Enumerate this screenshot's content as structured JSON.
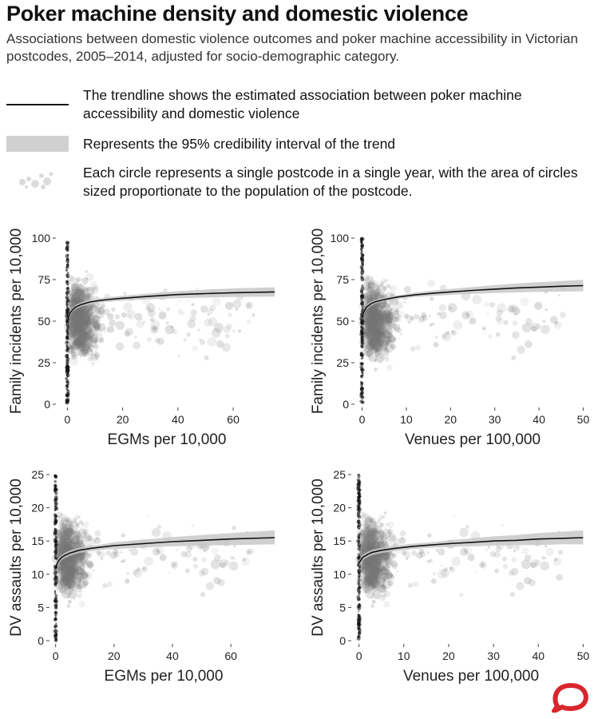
{
  "header": {
    "title": "Poker machine density and domestic violence",
    "subtitle": "Associations between domestic violence outcomes and poker machine accessibility in Victorian postcodes, 2005–2014, adjusted for socio-demographic category."
  },
  "legend": {
    "trendline": "The trendline shows the estimated association between poker machine accessibility and domestic violence",
    "interval": "Represents the 95% credibility interval of the trend",
    "circles": "Each circle represents a single postcode in a single year, with the area of circles sized proportionate to the population of the postcode."
  },
  "colors": {
    "trend": "#111111",
    "band": "#c8c8c8",
    "points": "#777777",
    "logo": "#d8262b"
  },
  "icons": {
    "logo": "speech-bubble-logo"
  },
  "chart_data": [
    {
      "type": "scatter",
      "xlabel": "EGMs per 10,000",
      "ylabel": "Family incidents per 10,000",
      "xlim": [
        -3,
        75
      ],
      "ylim": [
        0,
        100
      ],
      "xticks": [
        0,
        20,
        40,
        60
      ],
      "yticks": [
        0,
        25,
        50,
        75,
        100
      ],
      "trend": {
        "x": [
          0,
          0.5,
          1,
          2,
          3,
          5,
          8,
          12,
          16,
          20,
          30,
          40,
          50,
          60,
          75
        ],
        "y": [
          49,
          53,
          55,
          57,
          58.5,
          60,
          61.5,
          62.5,
          63.2,
          63.8,
          65,
          66,
          66.6,
          67.1,
          67.6
        ]
      },
      "band": {
        "lower": [
          47,
          51.5,
          53.5,
          55.8,
          57.2,
          58.8,
          60.2,
          61.3,
          61.8,
          62.3,
          63.2,
          63.8,
          64.2,
          64.5,
          64.8
        ],
        "upper": [
          51,
          54.5,
          56.5,
          58.3,
          59.8,
          61.3,
          62.8,
          63.8,
          64.6,
          65.3,
          66.8,
          68,
          69,
          69.7,
          70.4
        ]
      }
    },
    {
      "type": "scatter",
      "xlabel": "Venues per 100,000",
      "ylabel": "Family incidents per 10,000",
      "xlim": [
        -1,
        51
      ],
      "ylim": [
        0,
        100
      ],
      "xticks": [
        0,
        10,
        20,
        30,
        40,
        50
      ],
      "yticks": [
        0,
        25,
        50,
        75,
        100
      ],
      "trend": {
        "x": [
          0,
          0.3,
          0.7,
          1,
          2,
          3,
          5,
          8,
          12,
          16,
          20,
          25,
          30,
          35,
          40,
          45,
          50
        ],
        "y": [
          52,
          55,
          57,
          58.5,
          60.5,
          61.7,
          63,
          64.5,
          65.8,
          66.8,
          67.6,
          68.5,
          69.3,
          70,
          70.5,
          71,
          71.4
        ]
      },
      "band": {
        "lower": [
          50,
          53.5,
          55.8,
          57.2,
          59.3,
          60.6,
          62,
          63.4,
          64.5,
          65.2,
          65.8,
          66.4,
          66.9,
          67.3,
          67.6,
          67.8,
          68
        ],
        "upper": [
          54,
          56.5,
          58.2,
          59.8,
          61.7,
          62.8,
          64.1,
          65.6,
          67.1,
          68.4,
          69.4,
          70.6,
          71.7,
          72.7,
          73.4,
          74.2,
          74.8
        ]
      }
    },
    {
      "type": "scatter",
      "xlabel": "EGMs per 10,000",
      "ylabel": "DV assaults per 10,000",
      "xlim": [
        -1,
        75
      ],
      "ylim": [
        0,
        25
      ],
      "xticks": [
        0,
        20,
        40,
        60
      ],
      "yticks": [
        0,
        5,
        10,
        15,
        20,
        25
      ],
      "trend": {
        "x": [
          0,
          0.5,
          1,
          2,
          3,
          5,
          8,
          12,
          16,
          20,
          30,
          40,
          50,
          60,
          75
        ],
        "y": [
          10.8,
          11.6,
          12,
          12.5,
          12.8,
          13.2,
          13.6,
          13.9,
          14.1,
          14.3,
          14.6,
          14.9,
          15.1,
          15.3,
          15.5
        ]
      },
      "band": {
        "lower": [
          10.3,
          11.2,
          11.6,
          12.1,
          12.4,
          12.8,
          13.2,
          13.5,
          13.7,
          13.8,
          14,
          14.2,
          14.3,
          14.4,
          14.5
        ],
        "upper": [
          11.3,
          12,
          12.4,
          12.9,
          13.2,
          13.6,
          14,
          14.3,
          14.5,
          14.8,
          15.2,
          15.6,
          15.9,
          16.2,
          16.6
        ]
      }
    },
    {
      "type": "scatter",
      "xlabel": "Venues per 100,000",
      "ylabel": "DV assaults per 10,000",
      "xlim": [
        -1,
        51
      ],
      "ylim": [
        0,
        25
      ],
      "xticks": [
        0,
        10,
        20,
        30,
        40,
        50
      ],
      "yticks": [
        0,
        5,
        10,
        15,
        20,
        25
      ],
      "trend": {
        "x": [
          0,
          0.3,
          0.7,
          1,
          2,
          3,
          5,
          8,
          12,
          16,
          20,
          25,
          30,
          35,
          40,
          45,
          50
        ],
        "y": [
          11.6,
          12,
          12.4,
          12.6,
          13,
          13.3,
          13.6,
          13.9,
          14.2,
          14.4,
          14.6,
          14.8,
          15,
          15.1,
          15.3,
          15.4,
          15.5
        ]
      },
      "band": {
        "lower": [
          11.1,
          11.6,
          12,
          12.2,
          12.6,
          12.9,
          13.2,
          13.5,
          13.8,
          14,
          14.1,
          14.2,
          14.3,
          14.4,
          14.4,
          14.5,
          14.5
        ],
        "upper": [
          12.1,
          12.4,
          12.8,
          13,
          13.4,
          13.7,
          14,
          14.3,
          14.6,
          14.8,
          15.1,
          15.4,
          15.7,
          15.9,
          16.2,
          16.4,
          16.6
        ]
      }
    }
  ]
}
